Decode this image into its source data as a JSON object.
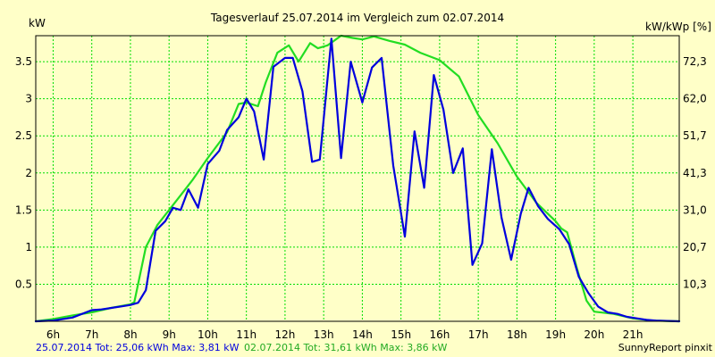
{
  "chart_data": {
    "type": "line",
    "title": "Tagesverlauf 25.07.2014 im Vergleich zum 02.07.2014",
    "ylabel_left": "kW",
    "ylabel_right": "kW/kWp [%]",
    "xlim": [
      5.55,
      22.2
    ],
    "ylim": [
      0,
      3.85
    ],
    "grid": true,
    "x_ticks": [
      {
        "v": 6,
        "label": "6h"
      },
      {
        "v": 7,
        "label": "7h"
      },
      {
        "v": 8,
        "label": "8h"
      },
      {
        "v": 9,
        "label": "9h"
      },
      {
        "v": 10,
        "label": "10h"
      },
      {
        "v": 11,
        "label": "11h"
      },
      {
        "v": 12,
        "label": "12h"
      },
      {
        "v": 13,
        "label": "13h"
      },
      {
        "v": 14,
        "label": "14h"
      },
      {
        "v": 15,
        "label": "15h"
      },
      {
        "v": 16,
        "label": "16h"
      },
      {
        "v": 17,
        "label": "17h"
      },
      {
        "v": 18,
        "label": "18h"
      },
      {
        "v": 19,
        "label": "19h"
      },
      {
        "v": 20,
        "label": "20h"
      },
      {
        "v": 21,
        "label": "21h"
      }
    ],
    "y_ticks_left": [
      {
        "v": 0.5,
        "label": "0.5"
      },
      {
        "v": 1,
        "label": "1"
      },
      {
        "v": 1.5,
        "label": "1.5"
      },
      {
        "v": 2,
        "label": "2"
      },
      {
        "v": 2.5,
        "label": "2.5"
      },
      {
        "v": 3,
        "label": "3"
      },
      {
        "v": 3.5,
        "label": "3.5"
      }
    ],
    "y_ticks_right": [
      {
        "v": 0.5,
        "label": "10,3"
      },
      {
        "v": 1,
        "label": "20,7"
      },
      {
        "v": 1.5,
        "label": "31,0"
      },
      {
        "v": 2,
        "label": "41,3"
      },
      {
        "v": 2.5,
        "label": "51,7"
      },
      {
        "v": 3,
        "label": "62,0"
      },
      {
        "v": 3.5,
        "label": "72,3"
      }
    ],
    "series": [
      {
        "name": "25.07.2014",
        "color": "#0000dd",
        "points": [
          [
            5.55,
            0
          ],
          [
            6,
            0.01
          ],
          [
            6.5,
            0.05
          ],
          [
            7,
            0.15
          ],
          [
            7.25,
            0.16
          ],
          [
            7.75,
            0.2
          ],
          [
            8,
            0.22
          ],
          [
            8.2,
            0.25
          ],
          [
            8.4,
            0.42
          ],
          [
            8.65,
            1.22
          ],
          [
            8.9,
            1.35
          ],
          [
            9.1,
            1.53
          ],
          [
            9.3,
            1.5
          ],
          [
            9.5,
            1.78
          ],
          [
            9.75,
            1.53
          ],
          [
            10,
            2.12
          ],
          [
            10.3,
            2.3
          ],
          [
            10.5,
            2.58
          ],
          [
            10.8,
            2.75
          ],
          [
            11,
            3.0
          ],
          [
            11.2,
            2.83
          ],
          [
            11.45,
            2.18
          ],
          [
            11.7,
            3.43
          ],
          [
            12,
            3.55
          ],
          [
            12.2,
            3.55
          ],
          [
            12.45,
            3.1
          ],
          [
            12.7,
            2.15
          ],
          [
            12.9,
            2.18
          ],
          [
            13.2,
            3.81
          ],
          [
            13.45,
            2.2
          ],
          [
            13.7,
            3.5
          ],
          [
            14,
            2.95
          ],
          [
            14.25,
            3.42
          ],
          [
            14.5,
            3.55
          ],
          [
            14.8,
            2.1
          ],
          [
            15.1,
            1.14
          ],
          [
            15.35,
            2.56
          ],
          [
            15.6,
            1.8
          ],
          [
            15.85,
            3.32
          ],
          [
            16.1,
            2.85
          ],
          [
            16.35,
            2.0
          ],
          [
            16.6,
            2.33
          ],
          [
            16.85,
            0.76
          ],
          [
            17.1,
            1.05
          ],
          [
            17.35,
            2.32
          ],
          [
            17.6,
            1.4
          ],
          [
            17.85,
            0.83
          ],
          [
            18.1,
            1.45
          ],
          [
            18.3,
            1.8
          ],
          [
            18.55,
            1.55
          ],
          [
            18.8,
            1.38
          ],
          [
            19.1,
            1.24
          ],
          [
            19.35,
            1.04
          ],
          [
            19.6,
            0.6
          ],
          [
            19.85,
            0.38
          ],
          [
            20.1,
            0.2
          ],
          [
            20.35,
            0.12
          ],
          [
            20.6,
            0.1
          ],
          [
            20.85,
            0.06
          ],
          [
            21.1,
            0.04
          ],
          [
            21.35,
            0.02
          ],
          [
            21.6,
            0.01
          ],
          [
            22.2,
            0
          ]
        ]
      },
      {
        "name": "02.07.2014",
        "color": "#22dd22",
        "points": [
          [
            5.55,
            0
          ],
          [
            6,
            0.03
          ],
          [
            6.5,
            0.08
          ],
          [
            7,
            0.12
          ],
          [
            7.5,
            0.18
          ],
          [
            8,
            0.23
          ],
          [
            8.1,
            0.26
          ],
          [
            8.4,
            1.0
          ],
          [
            8.7,
            1.3
          ],
          [
            9,
            1.5
          ],
          [
            9.3,
            1.7
          ],
          [
            9.6,
            1.9
          ],
          [
            10,
            2.2
          ],
          [
            10.5,
            2.55
          ],
          [
            10.8,
            2.93
          ],
          [
            11,
            2.95
          ],
          [
            11.3,
            2.9
          ],
          [
            11.5,
            3.22
          ],
          [
            11.8,
            3.62
          ],
          [
            12.1,
            3.72
          ],
          [
            12.35,
            3.5
          ],
          [
            12.65,
            3.75
          ],
          [
            12.85,
            3.68
          ],
          [
            13.1,
            3.72
          ],
          [
            13.45,
            3.85
          ],
          [
            13.75,
            3.82
          ],
          [
            14,
            3.8
          ],
          [
            14.3,
            3.84
          ],
          [
            14.7,
            3.78
          ],
          [
            15.1,
            3.73
          ],
          [
            15.5,
            3.62
          ],
          [
            16,
            3.52
          ],
          [
            16.5,
            3.3
          ],
          [
            17,
            2.78
          ],
          [
            17.5,
            2.4
          ],
          [
            18,
            1.95
          ],
          [
            18.5,
            1.6
          ],
          [
            19,
            1.35
          ],
          [
            19.15,
            1.25
          ],
          [
            19.3,
            1.2
          ],
          [
            19.55,
            0.72
          ],
          [
            19.8,
            0.28
          ],
          [
            20,
            0.13
          ],
          [
            20.5,
            0.1
          ],
          [
            21,
            0.04
          ],
          [
            21.5,
            0.01
          ],
          [
            22.2,
            0
          ]
        ]
      }
    ],
    "footer": {
      "left_blue": "25.07.2014 Tot: 25,06 kWh Max: 3,81 kW",
      "left_green": "02.07.2014 Tot: 31,61 kWh Max: 3,86 kW",
      "right": "SunnyReport pinxit"
    }
  },
  "colors": {
    "background": "#ffffc8",
    "grid": "#00dd00",
    "series1": "#0000dd",
    "series2": "#22dd22"
  }
}
